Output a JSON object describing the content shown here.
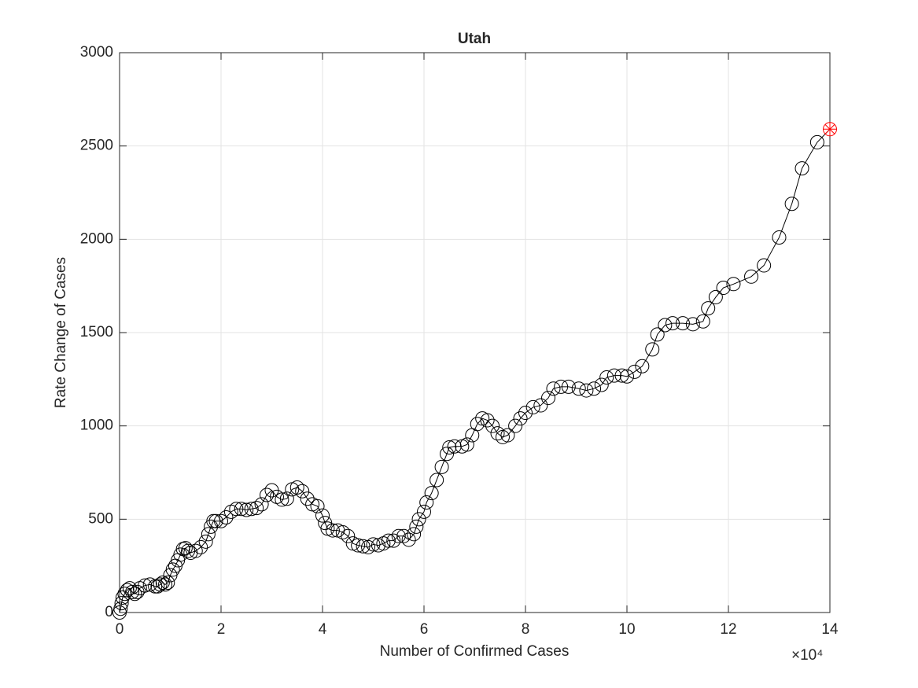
{
  "chart_data": {
    "type": "line",
    "title": "Utah",
    "x_label": "Number of Confirmed Cases",
    "y_label": "Rate Change of Cases",
    "x_multiplier": "×10⁴",
    "x": [
      0,
      200,
      400,
      600,
      1000,
      1500,
      2000,
      2500,
      3000,
      3500,
      4000,
      5000,
      6000,
      7000,
      7500,
      8000,
      8500,
      9000,
      9500,
      10000,
      10500,
      11000,
      11500,
      12000,
      12500,
      13000,
      13500,
      14000,
      15000,
      16000,
      17000,
      17500,
      18000,
      18500,
      19000,
      20000,
      21000,
      22000,
      23000,
      24000,
      25000,
      26000,
      27000,
      28000,
      29000,
      30000,
      31000,
      32000,
      33000,
      34000,
      35000,
      36000,
      37000,
      38000,
      39000,
      40000,
      40500,
      41000,
      42000,
      43000,
      44000,
      45000,
      46000,
      47000,
      48000,
      49000,
      50000,
      51000,
      52000,
      53000,
      54000,
      55000,
      56000,
      57000,
      58000,
      58500,
      59000,
      60000,
      60500,
      61500,
      62500,
      63500,
      64500,
      65000,
      66000,
      67500,
      68500,
      69500,
      70500,
      71500,
      72500,
      73500,
      74500,
      75500,
      76500,
      78000,
      79000,
      80000,
      81500,
      83000,
      84500,
      85500,
      87000,
      88500,
      90500,
      92000,
      93500,
      95000,
      96000,
      97500,
      99000,
      100000,
      101500,
      103000,
      105000,
      106000,
      107500,
      109000,
      111000,
      113000,
      115000,
      116000,
      117500,
      119000,
      121000,
      124500,
      127000,
      130000,
      132500,
      134500,
      137500,
      140000
    ],
    "y": [
      0,
      20,
      50,
      80,
      100,
      120,
      130,
      110,
      100,
      110,
      130,
      145,
      150,
      140,
      140,
      150,
      160,
      150,
      160,
      200,
      230,
      250,
      280,
      310,
      340,
      345,
      330,
      320,
      330,
      350,
      380,
      420,
      460,
      490,
      490,
      490,
      510,
      540,
      555,
      555,
      550,
      555,
      560,
      580,
      630,
      655,
      620,
      605,
      610,
      660,
      670,
      650,
      610,
      580,
      570,
      520,
      480,
      450,
      440,
      440,
      430,
      410,
      370,
      360,
      355,
      350,
      365,
      360,
      370,
      385,
      385,
      410,
      410,
      390,
      420,
      460,
      500,
      540,
      590,
      640,
      710,
      780,
      850,
      885,
      890,
      890,
      900,
      950,
      1010,
      1040,
      1030,
      1000,
      960,
      940,
      950,
      1000,
      1040,
      1070,
      1100,
      1110,
      1150,
      1200,
      1210,
      1210,
      1200,
      1190,
      1200,
      1220,
      1260,
      1270,
      1270,
      1265,
      1290,
      1320,
      1410,
      1490,
      1540,
      1550,
      1550,
      1545,
      1560,
      1630,
      1690,
      1740,
      1760,
      1800,
      1860,
      2010,
      2190,
      2380,
      2520,
      2590
    ],
    "xlim": [
      0,
      140000
    ],
    "ylim": [
      0,
      3000
    ],
    "xticks": [
      {
        "value": 0,
        "label": "0"
      },
      {
        "value": 20000,
        "label": "2"
      },
      {
        "value": 40000,
        "label": "4"
      },
      {
        "value": 60000,
        "label": "6"
      },
      {
        "value": 80000,
        "label": "8"
      },
      {
        "value": 100000,
        "label": "10"
      },
      {
        "value": 120000,
        "label": "12"
      },
      {
        "value": 140000,
        "label": "14"
      }
    ],
    "yticks": [
      0,
      500,
      1000,
      1500,
      2000,
      2500,
      3000
    ],
    "grid": true,
    "color": "#000000",
    "last_point_color": "#ff0000"
  }
}
